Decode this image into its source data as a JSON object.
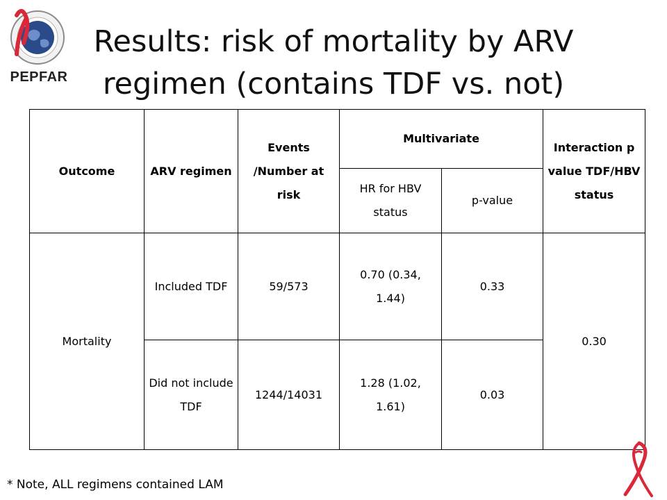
{
  "header": {
    "logo_text": "PEPFAR",
    "title": "Results: risk of mortality by ARV regimen (contains TDF vs. not)"
  },
  "table": {
    "headers": {
      "outcome": "Outcome",
      "arv_regimen": "ARV regimen",
      "events": "Events /Number at risk",
      "multivariate": "Multivariate",
      "hr": "HR for HBV status",
      "p_value": "p-value",
      "interaction": "Interaction p value TDF/HBV status"
    },
    "outcome_label": "Mortality",
    "interaction_value": "0.30",
    "rows": [
      {
        "regimen": "Included TDF",
        "events": "59/573",
        "hr": "0.70 (0.34, 1.44)",
        "p": "0.33"
      },
      {
        "regimen": "Did not include TDF",
        "events": "1244/14031",
        "hr": "1.28 (1.02, 1.61)",
        "p": "0.03"
      }
    ]
  },
  "footnote": "* Note, ALL regimens contained LAM",
  "colors": {
    "ribbon": "#d9283a",
    "seal_blue": "#2b4a8a"
  }
}
